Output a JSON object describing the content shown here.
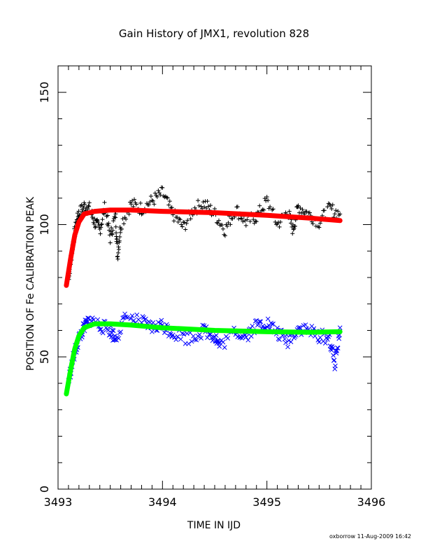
{
  "chart_data": {
    "type": "scatter",
    "title": "Gain History of JMX1, revolution 828",
    "xlabel": "TIME IN IJD",
    "ylabel": "POSITION OF Fe CALIBRATION PEAK",
    "xlim": [
      3493,
      3496
    ],
    "ylim": [
      0,
      160
    ],
    "x_ticks": [
      3493,
      3494,
      3495,
      3496
    ],
    "y_ticks": [
      0,
      50,
      100,
      150
    ],
    "grid": false,
    "legend": "none",
    "footer": "oxborrow 11-Aug-2009 16:42",
    "series": [
      {
        "marker": "+",
        "color": "#000000",
        "x_range": [
          3493.08,
          3495.7
        ],
        "points": [
          [
            3493.1,
            80
          ],
          [
            3493.12,
            86
          ],
          [
            3493.15,
            95
          ],
          [
            3493.18,
            101
          ],
          [
            3493.2,
            104
          ],
          [
            3493.25,
            107
          ],
          [
            3493.3,
            106
          ],
          [
            3493.35,
            101
          ],
          [
            3493.4,
            98
          ],
          [
            3493.45,
            107
          ],
          [
            3493.5,
            95
          ],
          [
            3493.55,
            104
          ],
          [
            3493.57,
            88
          ],
          [
            3493.6,
            100
          ],
          [
            3493.7,
            108
          ],
          [
            3493.8,
            106
          ],
          [
            3493.9,
            109
          ],
          [
            3494.0,
            112
          ],
          [
            3494.1,
            104
          ],
          [
            3494.2,
            99
          ],
          [
            3494.3,
            106
          ],
          [
            3494.4,
            108
          ],
          [
            3494.5,
            104
          ],
          [
            3494.6,
            98
          ],
          [
            3494.7,
            106
          ],
          [
            3494.8,
            101
          ],
          [
            3494.9,
            103
          ],
          [
            3495.0,
            109
          ],
          [
            3495.1,
            100
          ],
          [
            3495.2,
            105
          ],
          [
            3495.25,
            98
          ],
          [
            3495.3,
            107
          ],
          [
            3495.4,
            104
          ],
          [
            3495.5,
            101
          ],
          [
            3495.6,
            106
          ],
          [
            3495.7,
            104
          ]
        ]
      },
      {
        "marker": "solid",
        "color": "#ff0000",
        "points": [
          [
            3493.08,
            77
          ],
          [
            3493.12,
            87
          ],
          [
            3493.16,
            96
          ],
          [
            3493.2,
            101
          ],
          [
            3493.25,
            104
          ],
          [
            3493.35,
            105
          ],
          [
            3493.5,
            105.5
          ],
          [
            3493.7,
            105.5
          ],
          [
            3494.0,
            105
          ],
          [
            3494.5,
            104.5
          ],
          [
            3495.0,
            103.5
          ],
          [
            3495.4,
            102.5
          ],
          [
            3495.7,
            101.5
          ]
        ]
      },
      {
        "marker": "x",
        "color": "#0000ff",
        "x_range": [
          3493.08,
          3495.7
        ],
        "points": [
          [
            3493.1,
            41
          ],
          [
            3493.15,
            50
          ],
          [
            3493.2,
            57
          ],
          [
            3493.25,
            61
          ],
          [
            3493.3,
            64
          ],
          [
            3493.4,
            62
          ],
          [
            3493.5,
            60
          ],
          [
            3493.55,
            57
          ],
          [
            3493.65,
            65
          ],
          [
            3493.8,
            63
          ],
          [
            3493.9,
            61
          ],
          [
            3494.0,
            62
          ],
          [
            3494.1,
            59
          ],
          [
            3494.25,
            57
          ],
          [
            3494.4,
            60
          ],
          [
            3494.5,
            58
          ],
          [
            3494.55,
            54
          ],
          [
            3494.7,
            60
          ],
          [
            3494.8,
            58
          ],
          [
            3494.9,
            62
          ],
          [
            3495.0,
            63
          ],
          [
            3495.1,
            59
          ],
          [
            3495.2,
            56
          ],
          [
            3495.3,
            61
          ],
          [
            3495.4,
            60
          ],
          [
            3495.5,
            58
          ],
          [
            3495.6,
            57
          ],
          [
            3495.65,
            47
          ],
          [
            3495.7,
            61
          ]
        ]
      },
      {
        "marker": "solid",
        "color": "#00ff00",
        "points": [
          [
            3493.08,
            36
          ],
          [
            3493.12,
            45
          ],
          [
            3493.16,
            53
          ],
          [
            3493.2,
            58
          ],
          [
            3493.25,
            61
          ],
          [
            3493.35,
            62.5
          ],
          [
            3493.5,
            62.5
          ],
          [
            3493.7,
            62
          ],
          [
            3494.0,
            61
          ],
          [
            3494.5,
            60
          ],
          [
            3495.0,
            59.5
          ],
          [
            3495.4,
            59.3
          ],
          [
            3495.7,
            59.5
          ]
        ]
      }
    ]
  }
}
